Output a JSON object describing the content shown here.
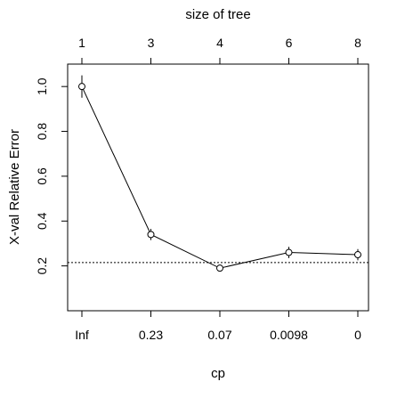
{
  "chart_data": {
    "type": "line",
    "title": "",
    "xlabel": "cp",
    "ylabel": "X-val Relative Error",
    "top_axis_label": "size of tree",
    "x_tick_labels": [
      "Inf",
      "0.23",
      "0.07",
      "0.0098",
      "0"
    ],
    "top_tick_labels": [
      "1",
      "3",
      "4",
      "6",
      "8"
    ],
    "y_ticks": [
      0.2,
      0.4,
      0.6,
      0.8,
      1.0
    ],
    "y_tick_labels": [
      "0.2",
      "0.4",
      "0.6",
      "0.8",
      "1.0"
    ],
    "ylim": [
      0.0,
      1.1
    ],
    "grid": false,
    "series": [
      {
        "values": [
          1.0,
          0.34,
          0.19,
          0.26,
          0.25
        ],
        "error": [
          0.05,
          0.025,
          0.015,
          0.025,
          0.025
        ]
      }
    ],
    "reference_line": {
      "value": 0.215,
      "style": "dotted"
    }
  }
}
